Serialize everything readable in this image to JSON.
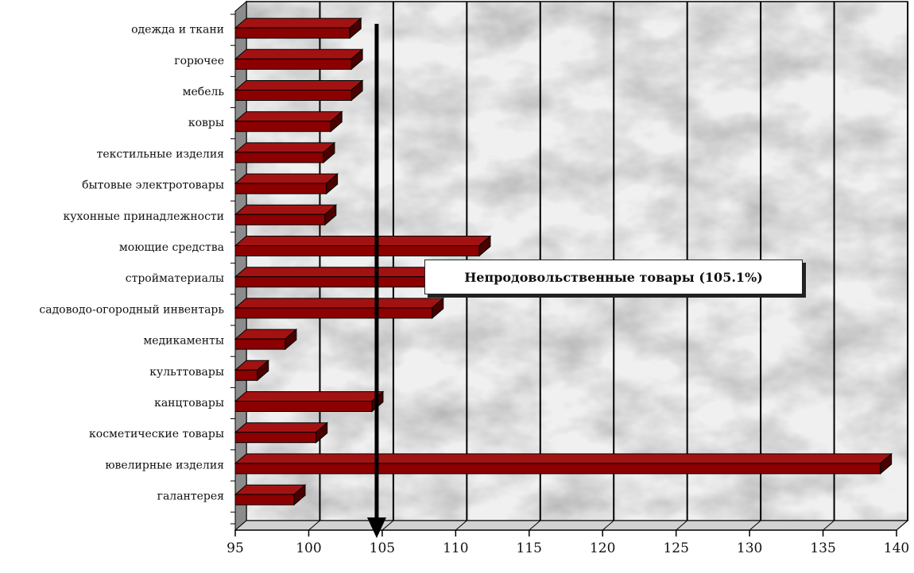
{
  "chart_data": {
    "type": "bar",
    "orientation": "horizontal",
    "categories": [
      "одежда и ткани",
      "горючее",
      "мебель",
      "ковры",
      "текстильные изделия",
      "бытовые электротовары",
      "кухонные  принадлежности",
      "моющие средства",
      "стройматериалы",
      "садоводо-огородный инвентарь",
      "медикаменты",
      "культтовары",
      "канцтовары",
      "косметические товары",
      "ювелирные изделия",
      "галантерея"
    ],
    "values": [
      102.8,
      102.9,
      102.9,
      101.5,
      101.0,
      101.2,
      101.1,
      111.6,
      108.0,
      108.4,
      98.4,
      96.5,
      104.3,
      100.5,
      138.9,
      99.0
    ],
    "xlim": [
      95,
      140
    ],
    "xticks": [
      95,
      100,
      105,
      110,
      115,
      120,
      125,
      130,
      135,
      140
    ],
    "reference_value": 104.3,
    "annotation": "Непродовольственные товары (105.1%)",
    "grid": "vertical",
    "title": "",
    "xlabel": "",
    "ylabel": "",
    "colors": {
      "bar_front": "#8b0000",
      "bar_top": "#a31212",
      "bar_side": "#4a0000",
      "wall": "#8c8c8c",
      "floor": "#d2d2d2",
      "grid": "#000000",
      "background": "#f0f0f0"
    }
  }
}
